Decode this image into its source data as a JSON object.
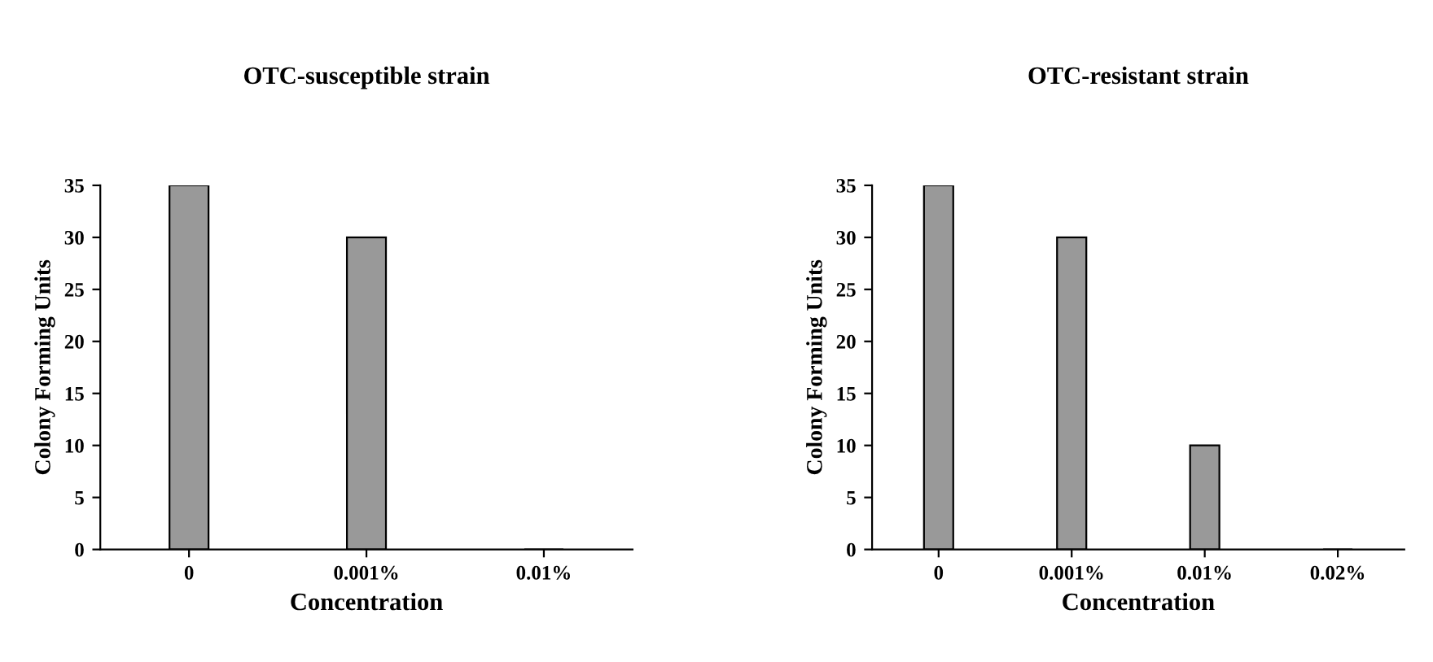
{
  "chart_data": [
    {
      "type": "bar",
      "title": "OTC-susceptible strain",
      "xlabel": "Concentration",
      "ylabel": "Colony Forming Units",
      "categories": [
        "0",
        "0.001%",
        "0.01%"
      ],
      "values": [
        35,
        30,
        0
      ],
      "color": "#999999",
      "ylim": [
        0,
        35
      ],
      "yticks": [
        0,
        5,
        10,
        15,
        20,
        25,
        30,
        35
      ],
      "grid": false
    },
    {
      "type": "bar",
      "title": "OTC-resistant strain",
      "xlabel": "Concentration",
      "ylabel": "Colony Forming Units",
      "categories": [
        "0",
        "0.001%",
        "0.01%",
        "0.02%"
      ],
      "values": [
        35,
        30,
        10,
        0
      ],
      "color": "#999999",
      "ylim": [
        0,
        35
      ],
      "yticks": [
        0,
        5,
        10,
        15,
        20,
        25,
        30,
        35
      ],
      "grid": false
    }
  ]
}
